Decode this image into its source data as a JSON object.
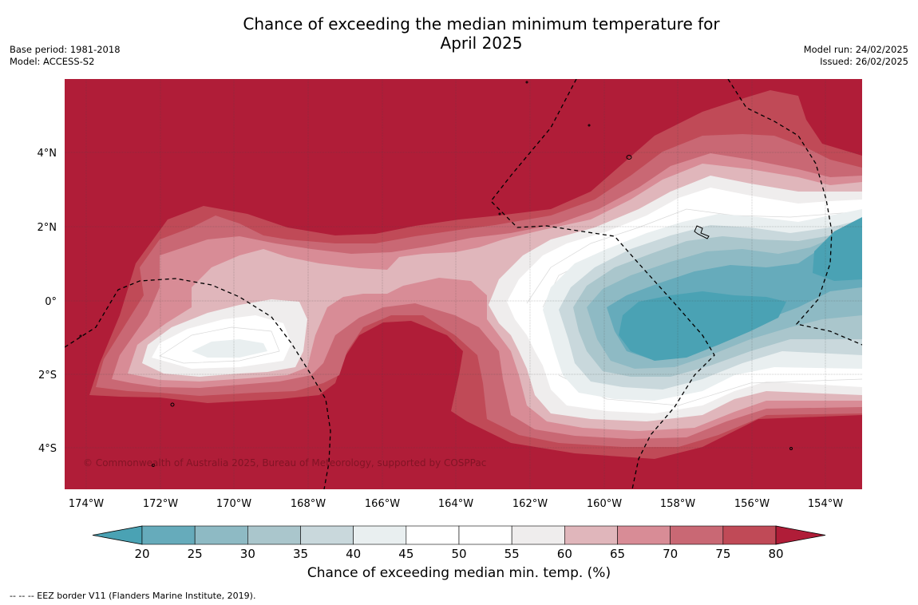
{
  "title": {
    "line1": "Chance of exceeding the median minimum temperature for",
    "line2": "April 2025"
  },
  "meta_left": {
    "base_period": "Base period: 1981-2018",
    "model": "Model: ACCESS-S2"
  },
  "meta_right": {
    "model_run": "Model run: 24/02/2025",
    "issued": "Issued: 26/02/2025"
  },
  "map": {
    "lon_ticks": [
      "174°W",
      "172°W",
      "170°W",
      "168°W",
      "166°W",
      "164°W",
      "162°W",
      "160°W",
      "158°W",
      "156°W",
      "154°W"
    ],
    "lat_ticks": [
      "4°N",
      "2°N",
      "0°",
      "2°S",
      "4°S"
    ],
    "copyright": "© Commonwealth of Australia 2025, Bureau of Meteorology, supported by COSPPac"
  },
  "colorbar": {
    "ticks": [
      "20",
      "25",
      "30",
      "35",
      "40",
      "45",
      "50",
      "55",
      "60",
      "65",
      "70",
      "75",
      "80"
    ],
    "colors": [
      "#66abbb",
      "#8ebac4",
      "#aac6cc",
      "#c9d8dc",
      "#e9eff0",
      "#ffffff",
      "#ffffff",
      "#efeded",
      "#e0b6bb",
      "#d88c96",
      "#c96874",
      "#c04a57"
    ],
    "under_color": "#4aa2b4",
    "over_color": "#b01d38",
    "title": "Chance of exceeding median min. temp. (%)"
  },
  "legend": {
    "eez": "--  --  -- EEZ border V11 (Flanders Marine Institute, 2019)."
  }
}
